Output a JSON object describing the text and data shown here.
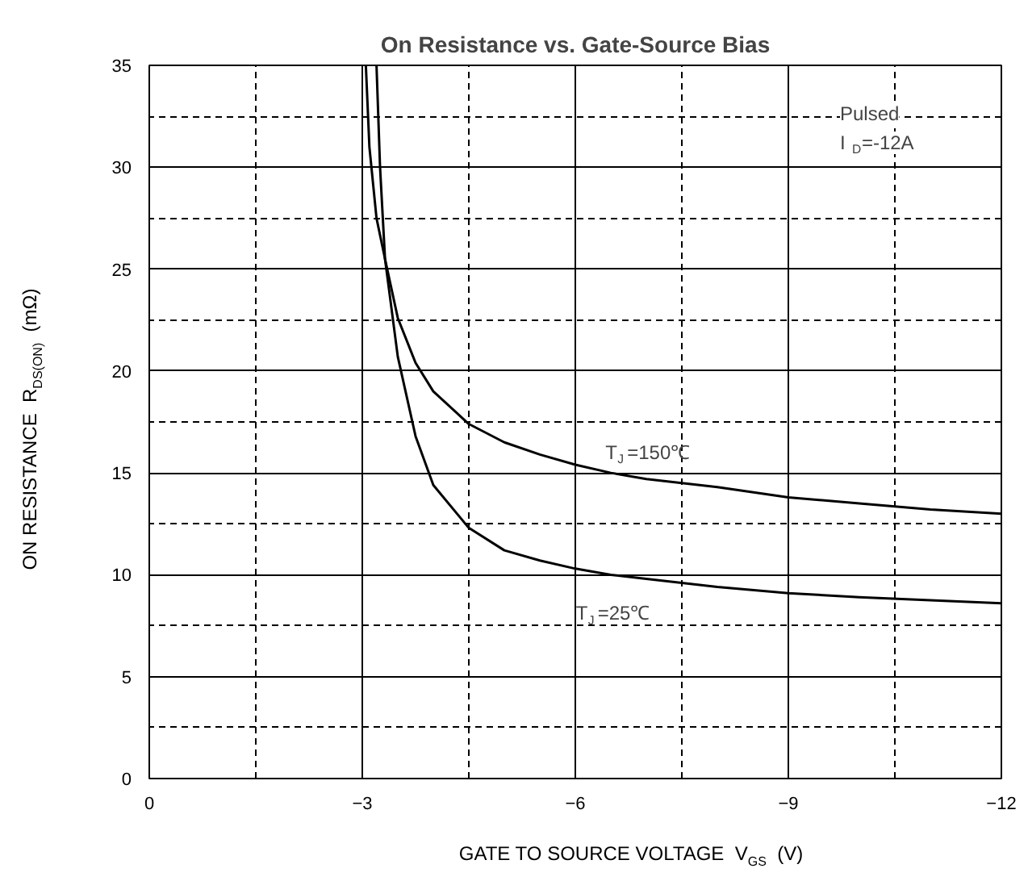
{
  "chart_data": {
    "type": "line",
    "title": "On Resistance vs. Gate-Source Bias",
    "xlabel": "GATE TO SOURCE VOLTAGE   V$_{GS}$   (V)",
    "ylabel": "ON RESISTANCE   R$_{DS(ON)}$   (mΩ)",
    "series": [
      {
        "name": "T$_{J}$=150℃",
        "color": "#000000",
        "x": [
          -3.2,
          -3.25,
          -3.32,
          -3.5,
          -3.75,
          -4,
          -4.5,
          -5,
          -5.5,
          -6,
          -6.5,
          -7,
          -7.5,
          -8,
          -9,
          -10,
          -11,
          -12
        ],
        "values": [
          35,
          30,
          25.5,
          22.6,
          20.4,
          19,
          17.4,
          16.5,
          15.9,
          15.4,
          15.0,
          14.7,
          14.5,
          14.3,
          13.8,
          13.5,
          13.2,
          13.0
        ]
      },
      {
        "name": "T$_{J}$=25℃",
        "color": "#000000",
        "x": [
          -3.05,
          -3.1,
          -3.2,
          -3.32,
          -3.5,
          -3.75,
          -4,
          -4.5,
          -5,
          -5.5,
          -6,
          -6.5,
          -7,
          -7.5,
          -8,
          -9,
          -10,
          -11,
          -12
        ],
        "values": [
          35,
          31,
          27.5,
          25.5,
          20.7,
          16.8,
          14.4,
          12.3,
          11.2,
          10.7,
          10.3,
          10.0,
          9.8,
          9.6,
          9.4,
          9.1,
          8.9,
          8.75,
          8.6
        ]
      }
    ],
    "annotations": [
      "Pulsed",
      "I$_{D}$=-12A"
    ],
    "xlim": [
      0,
      -12
    ],
    "xticks": [
      0,
      -3,
      -6,
      -9,
      -12
    ],
    "ylim": [
      0,
      35
    ],
    "yticks": [
      0,
      5,
      10,
      15,
      20,
      25,
      30,
      35
    ],
    "grid": true,
    "legend": false,
    "line_style": "solid",
    "marker": "none"
  }
}
